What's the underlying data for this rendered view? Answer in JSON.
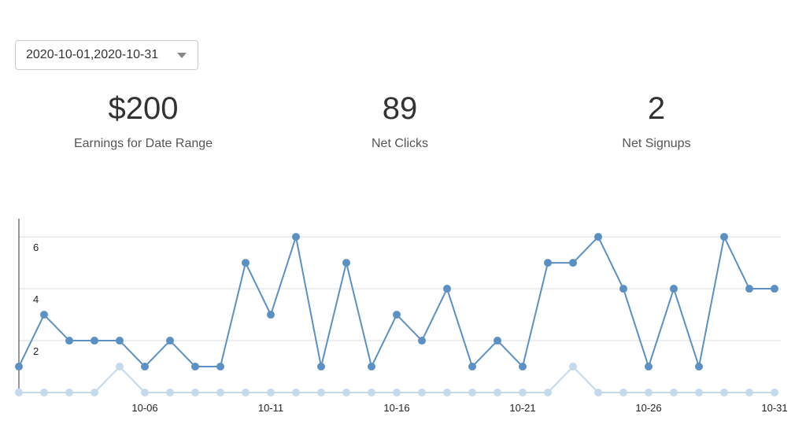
{
  "date_range": {
    "value": "2020-10-01,2020-10-31"
  },
  "stats": [
    {
      "value": "$200",
      "label": "Earnings for Date Range"
    },
    {
      "value": "89",
      "label": "Net Clicks"
    },
    {
      "value": "2",
      "label": "Net Signups"
    }
  ],
  "chart_data": {
    "type": "line",
    "x": [
      "10-01",
      "10-02",
      "10-03",
      "10-04",
      "10-05",
      "10-06",
      "10-07",
      "10-08",
      "10-09",
      "10-10",
      "10-11",
      "10-12",
      "10-13",
      "10-14",
      "10-15",
      "10-16",
      "10-17",
      "10-18",
      "10-19",
      "10-20",
      "10-21",
      "10-22",
      "10-23",
      "10-24",
      "10-25",
      "10-26",
      "10-27",
      "10-28",
      "10-29",
      "10-30",
      "10-31"
    ],
    "x_tick_labels": [
      "10-06",
      "10-11",
      "10-16",
      "10-21",
      "10-26",
      "10-31"
    ],
    "y_tick_labels": [
      "2",
      "4",
      "6"
    ],
    "ylim": [
      0,
      6.7
    ],
    "grid": true,
    "series": [
      {
        "color": "#5b90c2",
        "values": [
          1,
          3,
          2,
          2,
          2,
          1,
          2,
          1,
          1,
          5,
          3,
          6,
          1,
          5,
          1,
          3,
          2,
          4,
          1,
          2,
          1,
          5,
          5,
          6,
          4,
          1,
          4,
          1,
          6,
          4,
          4
        ]
      },
      {
        "color": "#c4d9ec",
        "values": [
          0,
          0,
          0,
          0,
          1,
          0,
          0,
          0,
          0,
          0,
          0,
          0,
          0,
          0,
          0,
          0,
          0,
          0,
          0,
          0,
          0,
          0,
          1,
          0,
          0,
          0,
          0,
          0,
          0,
          0,
          0
        ]
      }
    ]
  }
}
